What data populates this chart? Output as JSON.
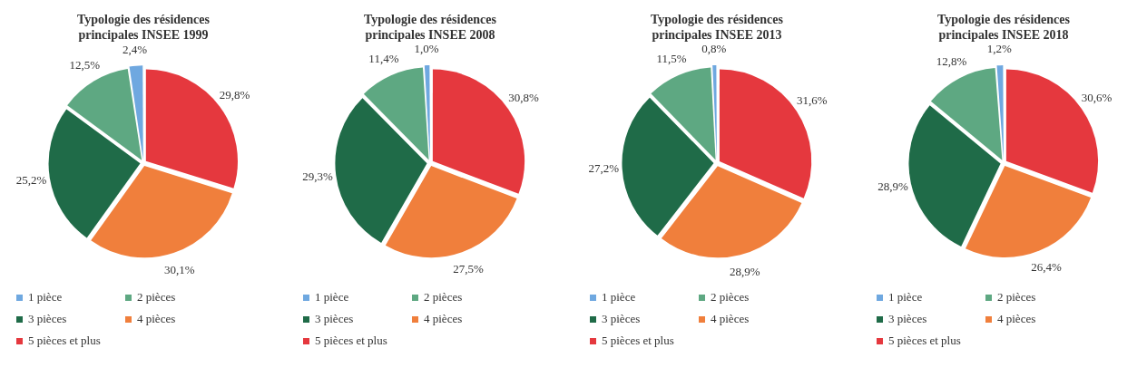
{
  "chart_data": [
    {
      "type": "pie",
      "title": "Typologie des résidences principales INSEE 1999",
      "categories": [
        "1 pièce",
        "2 pièces",
        "3 pièces",
        "4 pièces",
        "5 pièces et plus"
      ],
      "values": [
        2.4,
        12.5,
        25.2,
        30.1,
        29.8
      ],
      "value_labels": [
        "2,4%",
        "12,5%",
        "25,2%",
        "30,1%",
        "29,8%"
      ],
      "colors": [
        "#6fa8e0",
        "#5ea882",
        "#1f6b48",
        "#f07f3c",
        "#e5383e"
      ],
      "legend": "bottom"
    },
    {
      "type": "pie",
      "title": "Typologie des résidences principales INSEE 2008",
      "categories": [
        "1 pièce",
        "2 pièces",
        "3 pièces",
        "4 pièces",
        "5 pièces et plus"
      ],
      "values": [
        1.0,
        11.4,
        29.3,
        27.5,
        30.8
      ],
      "value_labels": [
        "1,0%",
        "11,4%",
        "29,3%",
        "27,5%",
        "30,8%"
      ],
      "colors": [
        "#6fa8e0",
        "#5ea882",
        "#1f6b48",
        "#f07f3c",
        "#e5383e"
      ],
      "legend": "bottom"
    },
    {
      "type": "pie",
      "title": "Typologie des résidences principales INSEE 2013",
      "categories": [
        "1 pièce",
        "2 pièces",
        "3 pièces",
        "4 pièces",
        "5 pièces et plus"
      ],
      "values": [
        0.8,
        11.5,
        27.2,
        28.9,
        31.6
      ],
      "value_labels": [
        "0,8%",
        "11,5%",
        "27,2%",
        "28,9%",
        "31,6%"
      ],
      "colors": [
        "#6fa8e0",
        "#5ea882",
        "#1f6b48",
        "#f07f3c",
        "#e5383e"
      ],
      "legend": "bottom"
    },
    {
      "type": "pie",
      "title": "Typologie des résidences principales INSEE 2018",
      "categories": [
        "1 pièce",
        "2 pièces",
        "3 pièces",
        "4 pièces",
        "5 pièces et plus"
      ],
      "values": [
        1.2,
        12.8,
        28.9,
        26.4,
        30.6
      ],
      "value_labels": [
        "1,2%",
        "12,8%",
        "28,9%",
        "26,4%",
        "30,6%"
      ],
      "colors": [
        "#6fa8e0",
        "#5ea882",
        "#1f6b48",
        "#f07f3c",
        "#e5383e"
      ],
      "legend": "bottom"
    }
  ]
}
